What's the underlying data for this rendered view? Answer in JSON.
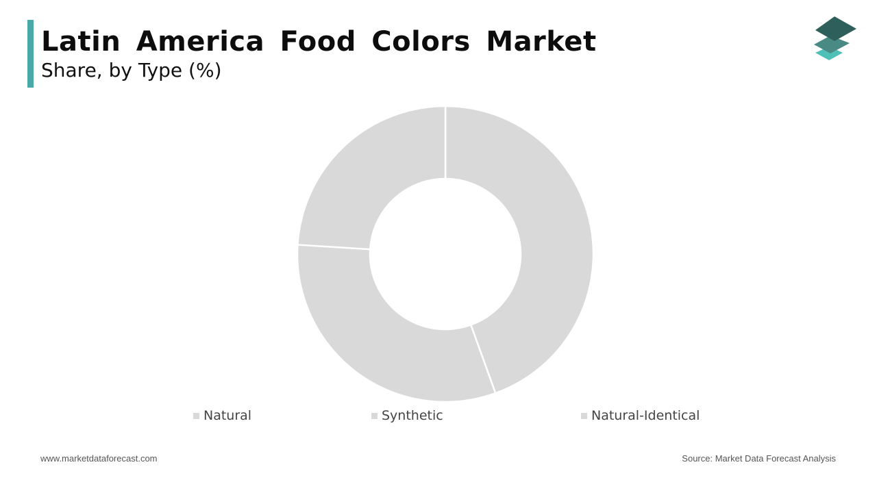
{
  "header": {
    "title": "Latin America Food Colors Market",
    "subtitle": "Share, by Type (%)"
  },
  "colors": {
    "accent": "#4aa8a8",
    "slice": "#d9d9d9",
    "separator": "#ffffff",
    "logo_top": "#2f5f5a",
    "logo_mid": "#4a8a85",
    "logo_bottom": "#4fc0b8"
  },
  "logo": {
    "icon": "stacked-layers-icon"
  },
  "chart_data": {
    "type": "pie",
    "variant": "donut",
    "categories": [
      "Natural",
      "Synthetic",
      "Natural-Identical"
    ],
    "values": [
      44.5,
      31.5,
      24.0
    ],
    "legend_position": "bottom",
    "grid": false
  },
  "footer": {
    "website": "www.marketdataforecast.com",
    "source": "Source: Market Data Forecast Analysis"
  }
}
